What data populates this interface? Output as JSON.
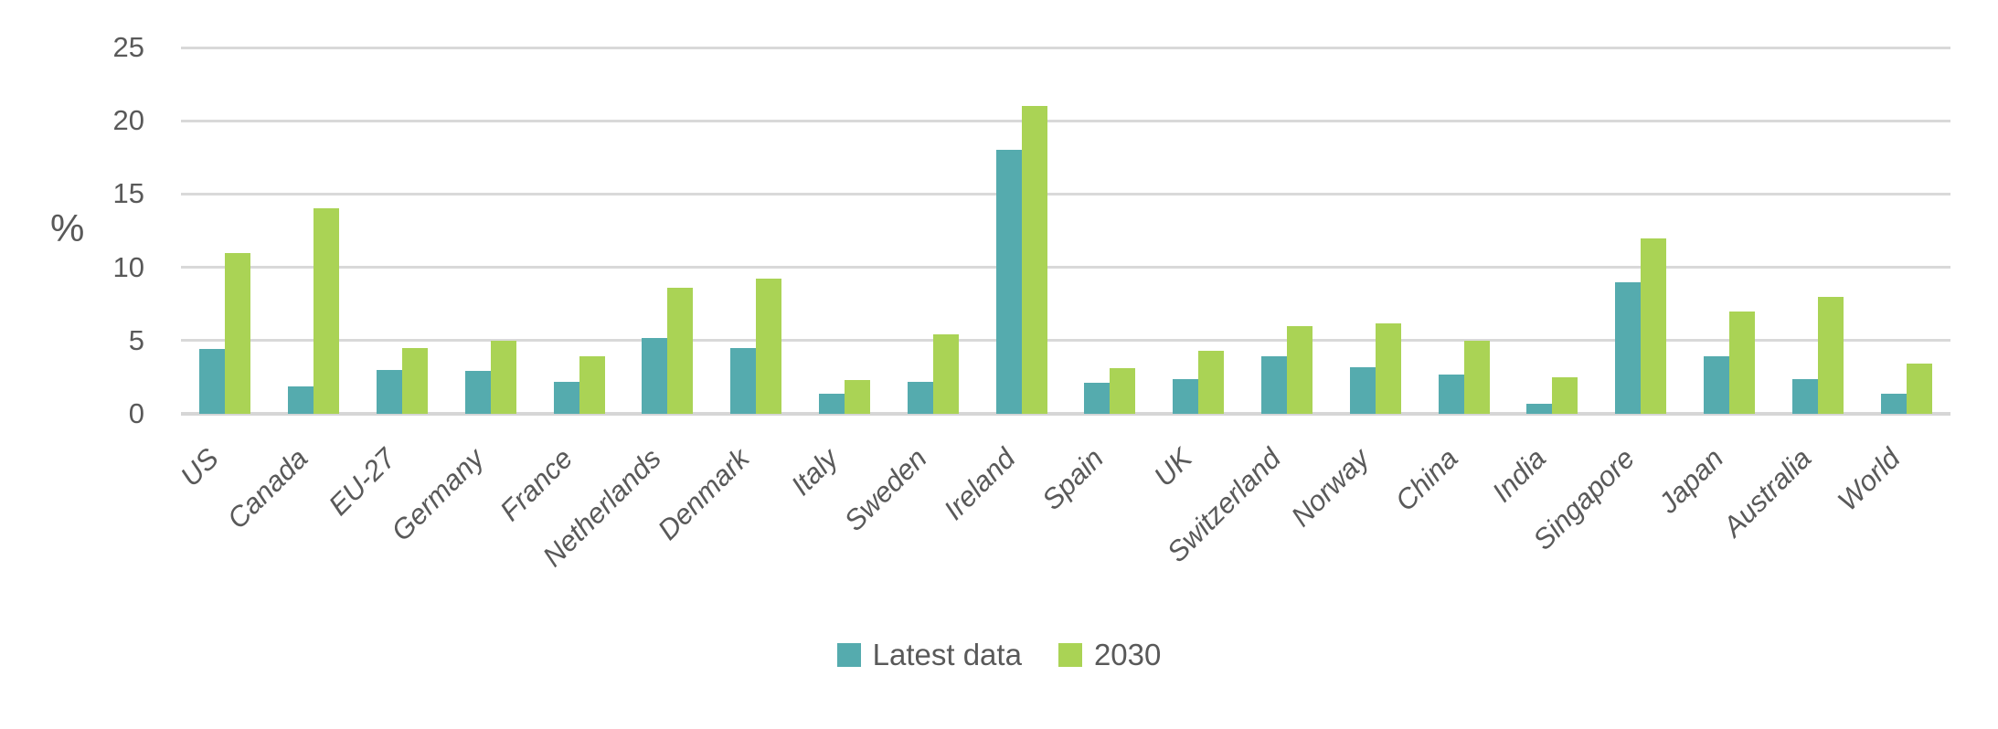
{
  "chart_data": {
    "type": "bar",
    "title": "",
    "ylabel": "%",
    "ylim": [
      0,
      25
    ],
    "yticks": [
      0,
      5,
      10,
      15,
      20,
      25
    ],
    "grid": true,
    "legend_position": "bottom-center",
    "axis_text_color": "#595959",
    "gridline_color": "#D9D9D9",
    "categories": [
      "US",
      "Canada",
      "EU-27",
      "Germany",
      "France",
      "Netherlands",
      "Denmark",
      "Italy",
      "Sweden",
      "Ireland",
      "Spain",
      "UK",
      "Switzerland",
      "Norway",
      "China",
      "India",
      "Singapore",
      "Japan",
      "Australia",
      "World"
    ],
    "series": [
      {
        "name": "Latest data",
        "color": "#55ABAE",
        "values": [
          4.4,
          1.9,
          3.0,
          2.9,
          2.2,
          5.2,
          4.5,
          1.4,
          2.2,
          18,
          2.1,
          2.4,
          3.9,
          3.2,
          2.7,
          0.7,
          9,
          3.9,
          2.4,
          1.4
        ]
      },
      {
        "name": "2030",
        "color": "#AAD355",
        "values": [
          11,
          14,
          4.5,
          5.0,
          3.9,
          8.6,
          9.2,
          2.3,
          5.4,
          21,
          3.1,
          4.3,
          6.0,
          6.2,
          5.0,
          2.5,
          12,
          7.0,
          8.0,
          3.4
        ]
      }
    ]
  }
}
